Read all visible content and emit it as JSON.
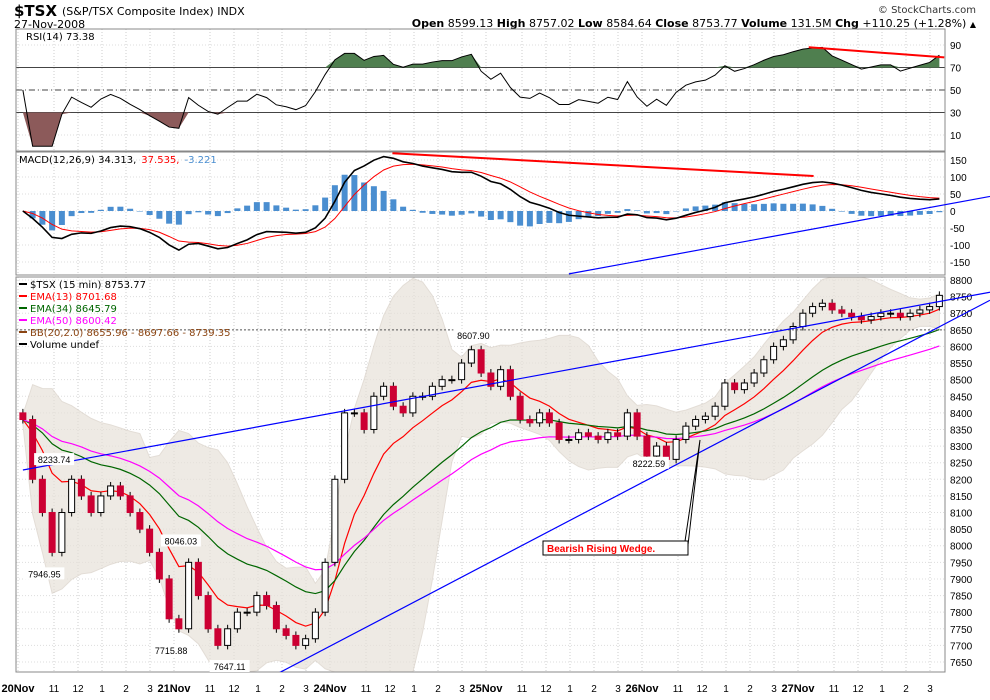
{
  "header": {
    "symbol": "$TSX",
    "description": "(S&P/TSX Composite Index) INDX",
    "date": "27-Nov-2008",
    "credit": "© StockCharts.com",
    "open_label": "Open",
    "open": "8599.13",
    "high_label": "High",
    "high": "8757.02",
    "low_label": "Low",
    "low": "8584.64",
    "close_label": "Close",
    "close": "8753.77",
    "volume_label": "Volume",
    "volume": "131.5M",
    "chg_label": "Chg",
    "chg": "+110.25 (+1.28%)",
    "chg_icon": "up-triangle"
  },
  "chart_data": {
    "type": "candlestick",
    "interval": "15 min",
    "x_tick_labels": [
      "20Nov",
      "11",
      "12",
      "1",
      "2",
      "3",
      "21Nov",
      "11",
      "12",
      "1",
      "2",
      "3",
      "24Nov",
      "11",
      "12",
      "1",
      "2",
      "3",
      "25Nov",
      "11",
      "12",
      "1",
      "2",
      "3",
      "26Nov",
      "11",
      "12",
      "1",
      "2",
      "3",
      "27Nov",
      "11",
      "12",
      "1",
      "2",
      "3"
    ],
    "days": [
      "20Nov",
      "21Nov",
      "24Nov",
      "25Nov",
      "26Nov",
      "27Nov"
    ],
    "closes": [
      [
        8380,
        8200,
        8100,
        7980,
        8100,
        8200,
        8150,
        8100,
        8150,
        8180,
        8150,
        8100,
        8050,
        7980,
        7900,
        7780
      ],
      [
        7750,
        7950,
        7850,
        7750,
        7700,
        7750,
        7800,
        7800,
        7850,
        7820,
        7750,
        7730,
        7700,
        7720,
        7800,
        7950
      ],
      [
        8200,
        8400,
        8400,
        8350,
        8450,
        8480,
        8420,
        8400,
        8450,
        8450,
        8480,
        8500,
        8500,
        8550,
        8590,
        8520
      ],
      [
        8480,
        8530,
        8450,
        8380,
        8370,
        8400,
        8370,
        8320,
        8320,
        8340,
        8330,
        8320,
        8340,
        8330,
        8400,
        8330
      ],
      [
        8270,
        8300,
        8260,
        8320,
        8360,
        8380,
        8390,
        8420,
        8490,
        8470,
        8490,
        8520,
        8560,
        8600,
        8620,
        8660
      ],
      [
        8700,
        8720,
        8730,
        8710,
        8700,
        8690,
        8680,
        8690,
        8700,
        8700,
        8690,
        8700,
        8710,
        8720,
        8753.77
      ]
    ],
    "price_axis": {
      "min": 7625,
      "max": 8810,
      "ticks": [
        7650,
        7700,
        7750,
        7800,
        7850,
        7900,
        7950,
        8000,
        8050,
        8100,
        8150,
        8200,
        8250,
        8300,
        8350,
        8400,
        8450,
        8500,
        8550,
        8600,
        8650,
        8700,
        8750,
        8800
      ]
    },
    "legend": {
      "price": "$TSX (15 min) 8753.77",
      "ema13": "EMA(13) 8701.68",
      "ema34": "EMA(34) 8645.79",
      "ema50": "EMA(50) 8600.42",
      "bb": "BB(20,2.0) 8655.96 - 8697.66 - 8739.35",
      "volume": "Volume undef"
    },
    "colors": {
      "up": "#ffffff",
      "down": "#cc0033",
      "ema13": "#ff0000",
      "ema34": "#006600",
      "ema50": "#ff00ff",
      "bb": "#e8e2da",
      "trend": "#0000ff",
      "annot": "#ff0000",
      "macd": "#000000",
      "signal": "#ff0000",
      "hist": "#4a8ed0",
      "rsi_pos": "#4f7f4f",
      "rsi_neg": "#8c5a5a"
    },
    "price_labels": [
      {
        "text": "8233.74",
        "day": 0,
        "bar": 3,
        "price": 8233.74
      },
      {
        "text": "7946.95",
        "day": 0,
        "bar": 2,
        "price": 7946.95
      },
      {
        "text": "8046.03",
        "day": 1,
        "bar": 0,
        "price": 8046.03
      },
      {
        "text": "7715.88",
        "day": 0,
        "bar": 15,
        "price": 7715.88
      },
      {
        "text": "7647.11",
        "day": 1,
        "bar": 5,
        "price": 7647.11
      },
      {
        "text": "8607.90",
        "day": 2,
        "bar": 14,
        "price": 8607.9
      },
      {
        "text": "8222.59",
        "day": 4,
        "bar": 0,
        "price": 8222.59
      }
    ],
    "trendlines": [
      {
        "panel": "price",
        "from": [
          0,
          0,
          8228
        ],
        "to": [
          5,
          16,
          8746
        ]
      },
      {
        "panel": "price",
        "from": [
          1,
          8.5,
          7590
        ],
        "to": [
          5,
          16,
          8690
        ]
      },
      {
        "panel": "macd",
        "from": [
          3,
          8,
          -185
        ],
        "to": [
          5,
          16,
          26
        ]
      },
      {
        "panel": "macd",
        "from": [
          2,
          5.9,
          170
        ],
        "to": [
          5,
          1.1,
          103
        ]
      },
      {
        "panel": "rsi",
        "from": [
          5,
          0.6,
          88
        ],
        "to": [
          5,
          14.5,
          79
        ]
      }
    ],
    "annotation": "Bearish Rising Wedge.",
    "rsi": {
      "label": "RSI(14) 73.38",
      "ticks": [
        10,
        30,
        50,
        70,
        90
      ],
      "min": 0,
      "max": 100
    },
    "macd": {
      "label": "MACD(12,26,9) 34.313,",
      "signal_label": "37.535,",
      "hist_label": "-3.221",
      "ticks": [
        -150,
        -100,
        -50,
        0,
        50,
        100,
        150
      ],
      "min": -175,
      "max": 175
    }
  }
}
